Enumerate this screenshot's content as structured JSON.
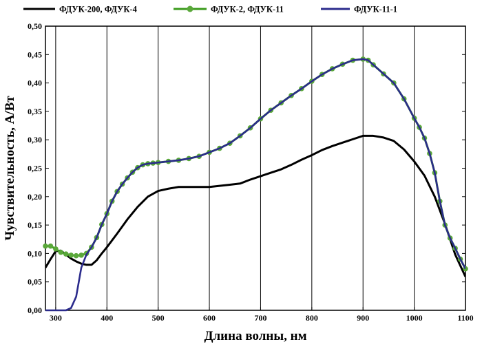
{
  "chart_data": {
    "type": "line",
    "xlabel": "Длина волны, нм",
    "ylabel": "Чувствительность, А/Вт",
    "xlim": [
      280,
      1100
    ],
    "ylim": [
      0,
      0.5
    ],
    "x_ticks": [
      300,
      400,
      500,
      600,
      700,
      800,
      900,
      1000,
      1100
    ],
    "x_tick_labels": [
      "300",
      "400",
      "500",
      "600",
      "700",
      "800",
      "900",
      "1000",
      "1100"
    ],
    "y_ticks": [
      0,
      0.05,
      0.1,
      0.15,
      0.2,
      0.25,
      0.3,
      0.35,
      0.4,
      0.45,
      0.5
    ],
    "y_tick_labels": [
      "0,00",
      "0,05",
      "0,10",
      "0,15",
      "0,20",
      "0,25",
      "0,30",
      "0,35",
      "0,40",
      "0,45",
      "0,50"
    ],
    "grid": "vertical",
    "legend_position": "top",
    "series": [
      {
        "name": "ФДУК-200, ФДУК-4",
        "color": "#000000",
        "style": "line",
        "points": [
          [
            280,
            0.075
          ],
          [
            290,
            0.09
          ],
          [
            300,
            0.104
          ],
          [
            310,
            0.105
          ],
          [
            320,
            0.098
          ],
          [
            330,
            0.091
          ],
          [
            340,
            0.086
          ],
          [
            350,
            0.082
          ],
          [
            360,
            0.08
          ],
          [
            370,
            0.08
          ],
          [
            380,
            0.088
          ],
          [
            390,
            0.1
          ],
          [
            400,
            0.111
          ],
          [
            420,
            0.135
          ],
          [
            440,
            0.16
          ],
          [
            460,
            0.182
          ],
          [
            480,
            0.2
          ],
          [
            500,
            0.21
          ],
          [
            520,
            0.214
          ],
          [
            540,
            0.217
          ],
          [
            560,
            0.217
          ],
          [
            580,
            0.217
          ],
          [
            600,
            0.217
          ],
          [
            620,
            0.219
          ],
          [
            640,
            0.221
          ],
          [
            660,
            0.223
          ],
          [
            680,
            0.23
          ],
          [
            700,
            0.236
          ],
          [
            720,
            0.242
          ],
          [
            740,
            0.248
          ],
          [
            760,
            0.256
          ],
          [
            780,
            0.265
          ],
          [
            800,
            0.273
          ],
          [
            820,
            0.282
          ],
          [
            840,
            0.289
          ],
          [
            860,
            0.295
          ],
          [
            880,
            0.301
          ],
          [
            900,
            0.307
          ],
          [
            920,
            0.307
          ],
          [
            940,
            0.304
          ],
          [
            960,
            0.298
          ],
          [
            980,
            0.283
          ],
          [
            1000,
            0.262
          ],
          [
            1020,
            0.237
          ],
          [
            1040,
            0.2
          ],
          [
            1060,
            0.152
          ],
          [
            1080,
            0.098
          ],
          [
            1100,
            0.059
          ]
        ]
      },
      {
        "name": "ФДУК-2, ФДУК-11",
        "color": "#3a9a1a",
        "marker_color": "#5aa83a",
        "style": "line-markers",
        "points": [
          [
            280,
            0.113
          ],
          [
            290,
            0.113
          ],
          [
            300,
            0.108
          ],
          [
            310,
            0.102
          ],
          [
            320,
            0.099
          ],
          [
            330,
            0.097
          ],
          [
            340,
            0.096
          ],
          [
            350,
            0.097
          ],
          [
            360,
            0.1
          ],
          [
            370,
            0.111
          ],
          [
            380,
            0.128
          ],
          [
            390,
            0.151
          ],
          [
            400,
            0.17
          ],
          [
            410,
            0.192
          ],
          [
            420,
            0.209
          ],
          [
            430,
            0.222
          ],
          [
            440,
            0.233
          ],
          [
            450,
            0.243
          ],
          [
            460,
            0.251
          ],
          [
            470,
            0.256
          ],
          [
            480,
            0.258
          ],
          [
            490,
            0.259
          ],
          [
            500,
            0.26
          ],
          [
            520,
            0.262
          ],
          [
            540,
            0.264
          ],
          [
            560,
            0.267
          ],
          [
            580,
            0.271
          ],
          [
            600,
            0.278
          ],
          [
            620,
            0.285
          ],
          [
            640,
            0.294
          ],
          [
            660,
            0.307
          ],
          [
            680,
            0.321
          ],
          [
            700,
            0.337
          ],
          [
            720,
            0.352
          ],
          [
            740,
            0.365
          ],
          [
            760,
            0.378
          ],
          [
            780,
            0.39
          ],
          [
            800,
            0.403
          ],
          [
            820,
            0.415
          ],
          [
            840,
            0.425
          ],
          [
            860,
            0.433
          ],
          [
            880,
            0.44
          ],
          [
            900,
            0.442
          ],
          [
            910,
            0.44
          ],
          [
            920,
            0.432
          ],
          [
            940,
            0.416
          ],
          [
            960,
            0.4
          ],
          [
            980,
            0.372
          ],
          [
            1000,
            0.338
          ],
          [
            1010,
            0.322
          ],
          [
            1020,
            0.303
          ],
          [
            1030,
            0.276
          ],
          [
            1040,
            0.242
          ],
          [
            1050,
            0.192
          ],
          [
            1060,
            0.15
          ],
          [
            1070,
            0.127
          ],
          [
            1080,
            0.109
          ],
          [
            1090,
            0.09
          ],
          [
            1100,
            0.073
          ]
        ]
      },
      {
        "name": "ФДУК-11-1",
        "color": "#2b2b8c",
        "style": "line",
        "points": [
          [
            280,
            0.0
          ],
          [
            290,
            0.0
          ],
          [
            300,
            0.0
          ],
          [
            310,
            0.0
          ],
          [
            320,
            0.0
          ],
          [
            330,
            0.004
          ],
          [
            340,
            0.024
          ],
          [
            350,
            0.075
          ],
          [
            360,
            0.098
          ],
          [
            370,
            0.111
          ],
          [
            380,
            0.128
          ],
          [
            390,
            0.151
          ],
          [
            400,
            0.17
          ],
          [
            410,
            0.192
          ],
          [
            420,
            0.209
          ],
          [
            430,
            0.222
          ],
          [
            440,
            0.233
          ],
          [
            450,
            0.243
          ],
          [
            460,
            0.251
          ],
          [
            470,
            0.256
          ],
          [
            480,
            0.258
          ],
          [
            490,
            0.259
          ],
          [
            500,
            0.26
          ],
          [
            520,
            0.262
          ],
          [
            540,
            0.264
          ],
          [
            560,
            0.267
          ],
          [
            580,
            0.271
          ],
          [
            600,
            0.278
          ],
          [
            620,
            0.285
          ],
          [
            640,
            0.294
          ],
          [
            660,
            0.307
          ],
          [
            680,
            0.321
          ],
          [
            700,
            0.337
          ],
          [
            720,
            0.352
          ],
          [
            740,
            0.365
          ],
          [
            760,
            0.378
          ],
          [
            780,
            0.39
          ],
          [
            800,
            0.403
          ],
          [
            820,
            0.415
          ],
          [
            840,
            0.425
          ],
          [
            860,
            0.433
          ],
          [
            880,
            0.44
          ],
          [
            900,
            0.442
          ],
          [
            910,
            0.44
          ],
          [
            920,
            0.432
          ],
          [
            940,
            0.416
          ],
          [
            960,
            0.4
          ],
          [
            980,
            0.372
          ],
          [
            1000,
            0.338
          ],
          [
            1010,
            0.322
          ],
          [
            1020,
            0.303
          ],
          [
            1030,
            0.276
          ],
          [
            1040,
            0.242
          ],
          [
            1050,
            0.192
          ],
          [
            1060,
            0.15
          ],
          [
            1070,
            0.127
          ],
          [
            1080,
            0.109
          ],
          [
            1090,
            0.09
          ],
          [
            1100,
            0.073
          ]
        ]
      }
    ]
  }
}
